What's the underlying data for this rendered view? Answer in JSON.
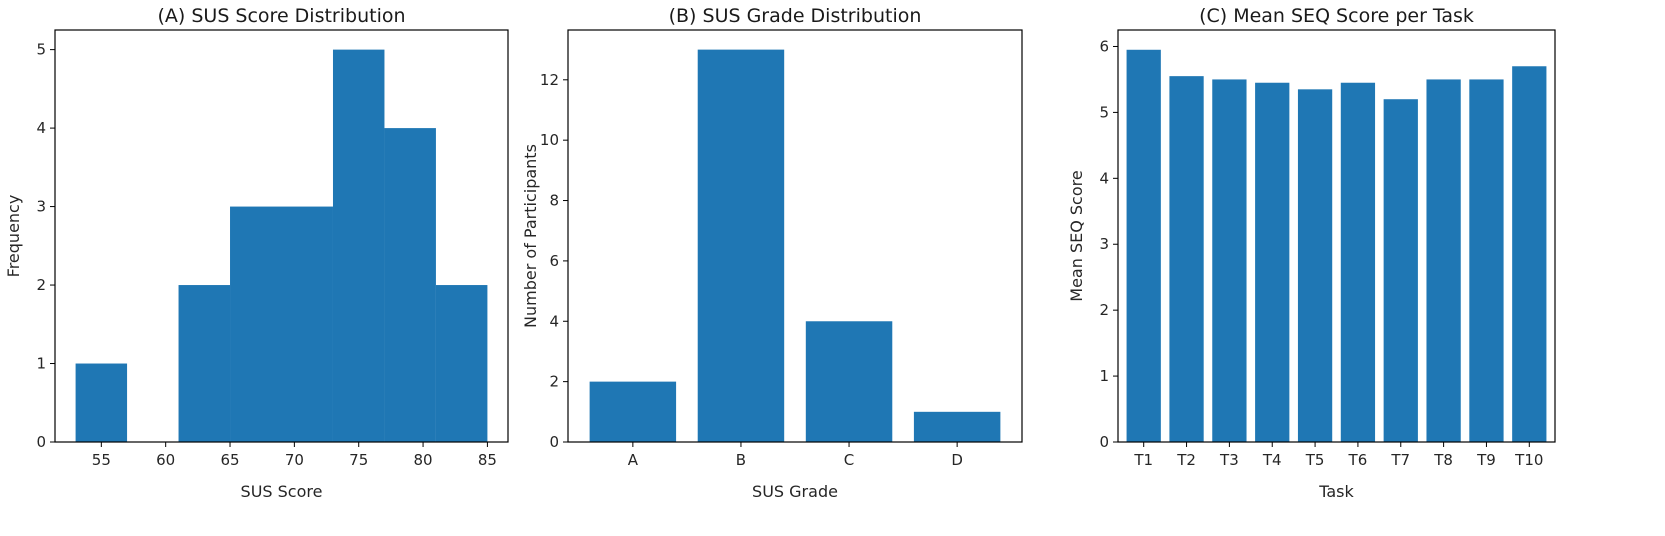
{
  "figure": {
    "colors": {
      "bar": "#1f77b4",
      "axis": "#000000",
      "text": "#262626"
    }
  },
  "chart_data": [
    {
      "type": "bar",
      "subtype": "histogram",
      "title": "(A) SUS Score Distribution",
      "xlabel": "SUS Score",
      "ylabel": "Frequency",
      "bins": [
        {
          "start": 53,
          "end": 57,
          "value": 1
        },
        {
          "start": 57,
          "end": 61,
          "value": 0
        },
        {
          "start": 61,
          "end": 65,
          "value": 2
        },
        {
          "start": 65,
          "end": 69,
          "value": 3
        },
        {
          "start": 69,
          "end": 73,
          "value": 3
        },
        {
          "start": 73,
          "end": 77,
          "value": 5
        },
        {
          "start": 77,
          "end": 81,
          "value": 4
        },
        {
          "start": 81,
          "end": 85,
          "value": 2
        }
      ],
      "xlim": [
        51.4,
        86.6
      ],
      "ylim": [
        0,
        5.25
      ],
      "xticks": [
        55,
        60,
        65,
        70,
        75,
        80,
        85
      ],
      "yticks": [
        0,
        1,
        2,
        3,
        4,
        5
      ]
    },
    {
      "type": "bar",
      "title": "(B) SUS Grade Distribution",
      "xlabel": "SUS Grade",
      "ylabel": "Number of Participants",
      "categories": [
        "A",
        "B",
        "C",
        "D"
      ],
      "values": [
        2,
        13,
        4,
        1
      ],
      "ylim": [
        0,
        13.65
      ],
      "yticks": [
        0,
        2,
        4,
        6,
        8,
        10,
        12
      ]
    },
    {
      "type": "bar",
      "title": "(C) Mean SEQ Score per Task",
      "xlabel": "Task",
      "ylabel": "Mean SEQ Score",
      "categories": [
        "T1",
        "T2",
        "T3",
        "T4",
        "T5",
        "T6",
        "T7",
        "T8",
        "T9",
        "T10"
      ],
      "values": [
        5.95,
        5.55,
        5.5,
        5.45,
        5.35,
        5.45,
        5.2,
        5.5,
        5.5,
        5.7
      ],
      "ylim": [
        0,
        6.25
      ],
      "yticks": [
        0,
        1,
        2,
        3,
        4,
        5,
        6
      ]
    }
  ]
}
